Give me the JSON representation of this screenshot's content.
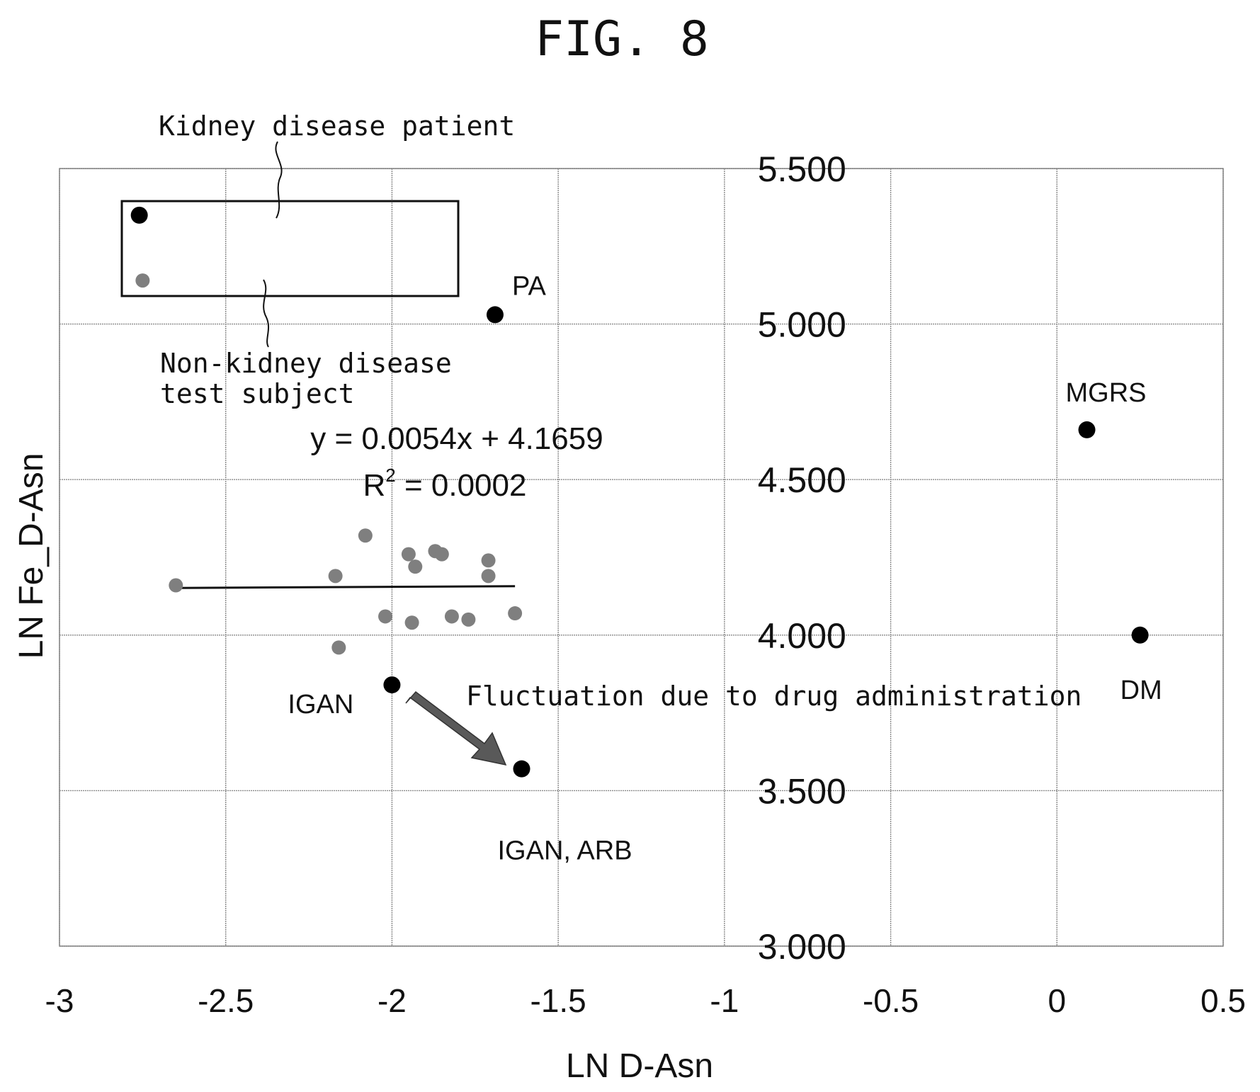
{
  "figure": {
    "title": "FIG. 8"
  },
  "colors": {
    "gray_point": "#7f7f7f",
    "black_point": "#000000",
    "arrow_fill": "#595959"
  },
  "annotations": {
    "kidney_label": "Kidney disease patient",
    "nonkidney_line1": "Non-kidney disease",
    "nonkidney_line2": "test subject",
    "fluctuation": "Fluctuation due to drug administration",
    "equation": "y = 0.0054x + 4.1659",
    "r2_prefix": "R",
    "r2_sup": "2",
    "r2_rest": " = 0.0002"
  },
  "chart_data": {
    "type": "scatter",
    "title": "FIG. 8",
    "xlabel": "LN D-Asn",
    "ylabel": "LN Fe_D-Asn",
    "xlim": [
      -3,
      0.5
    ],
    "ylim": [
      3.0,
      5.5
    ],
    "x_ticks": [
      -3,
      -2.5,
      -2,
      -1.5,
      -1,
      -0.5,
      0,
      0.5
    ],
    "x_tick_labels": [
      "-3",
      "-2.5",
      "-2",
      "-1.5",
      "-1",
      "-0.5",
      "0",
      "0.5"
    ],
    "y_ticks": [
      3.0,
      3.5,
      4.0,
      4.5,
      5.0,
      5.5
    ],
    "y_tick_labels": [
      "3.000",
      "3.500",
      "4.000",
      "4.500",
      "5.000",
      "5.500"
    ],
    "grid": true,
    "series": [
      {
        "color": "gray",
        "points": [
          {
            "x": -2.65,
            "y": 4.16
          },
          {
            "x": -2.17,
            "y": 4.19
          },
          {
            "x": -2.16,
            "y": 3.96
          },
          {
            "x": -2.08,
            "y": 4.32
          },
          {
            "x": -2.02,
            "y": 4.06
          },
          {
            "x": -1.95,
            "y": 4.26
          },
          {
            "x": -1.94,
            "y": 4.04
          },
          {
            "x": -1.93,
            "y": 4.22
          },
          {
            "x": -1.87,
            "y": 4.27
          },
          {
            "x": -1.85,
            "y": 4.26
          },
          {
            "x": -1.82,
            "y": 4.06
          },
          {
            "x": -1.77,
            "y": 4.05
          },
          {
            "x": -1.71,
            "y": 4.24
          },
          {
            "x": -1.71,
            "y": 4.19
          },
          {
            "x": -1.63,
            "y": 4.07
          },
          {
            "x": -2.75,
            "y": 5.14
          }
        ]
      },
      {
        "color": "black",
        "points": [
          {
            "x": -2.76,
            "y": 5.35,
            "label": ""
          },
          {
            "x": -1.69,
            "y": 5.03,
            "label": "PA"
          },
          {
            "x": 0.09,
            "y": 4.66,
            "label": "MGRS"
          },
          {
            "x": 0.25,
            "y": 4.0,
            "label": "DM"
          },
          {
            "x": -2.0,
            "y": 3.84,
            "label": "IGAN"
          },
          {
            "x": -1.61,
            "y": 3.57,
            "label": "IGAN, ARB"
          }
        ]
      }
    ],
    "trendline": {
      "slope": 0.0054,
      "intercept": 4.1659,
      "x_range": [
        -2.65,
        -1.63
      ]
    }
  }
}
